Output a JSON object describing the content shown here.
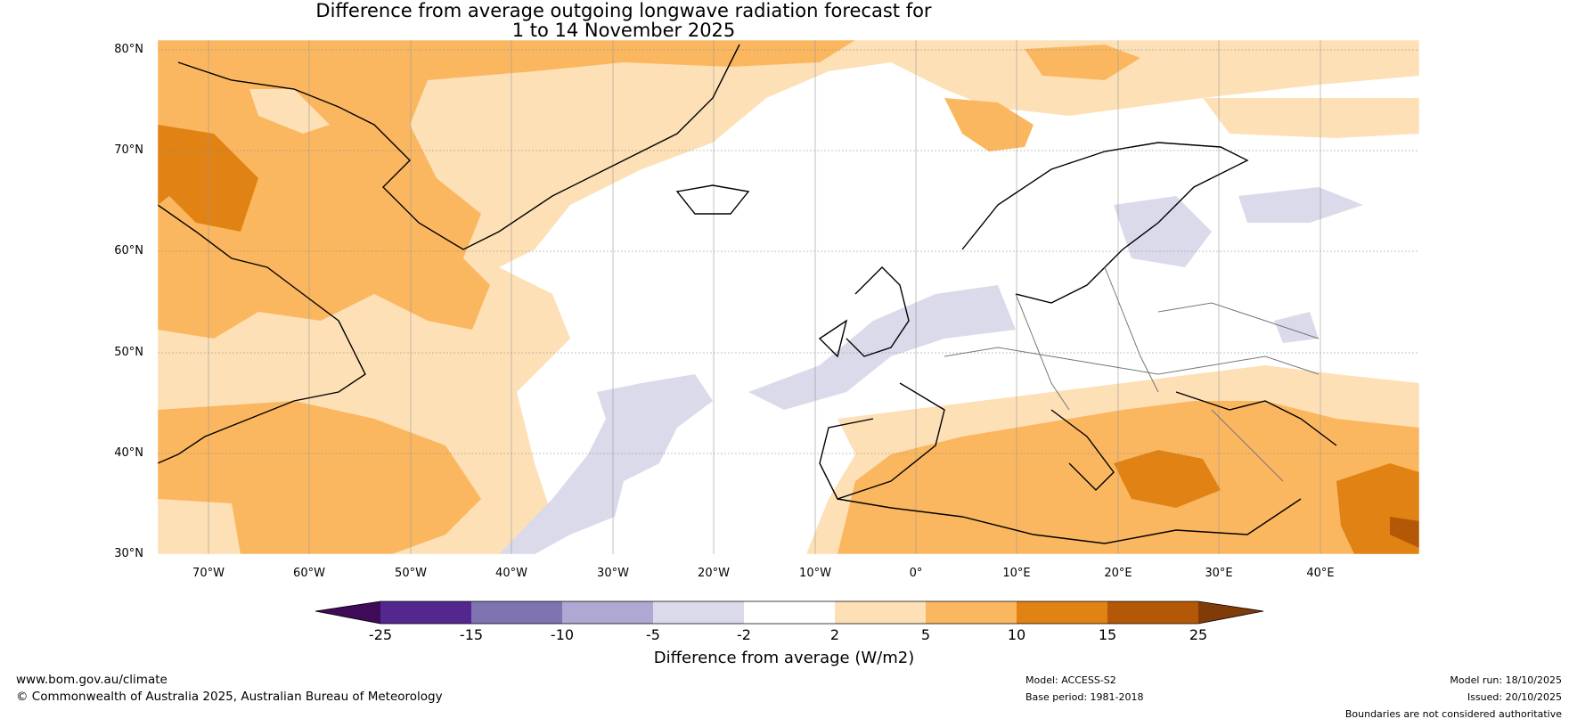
{
  "title": {
    "line1": "Difference from average outgoing longwave radiation forecast for",
    "line2": "1 to 14 November 2025"
  },
  "axes": {
    "lat_labels": [
      "80°N",
      "70°N",
      "60°N",
      "50°N",
      "40°N",
      "30°N"
    ],
    "lon_labels": [
      "70°W",
      "60°W",
      "50°W",
      "40°W",
      "30°W",
      "20°W",
      "10°W",
      "0°",
      "10°E",
      "20°E",
      "30°E",
      "40°E"
    ]
  },
  "colorbar": {
    "label": "Difference from average (W/m2)",
    "ticks": [
      "-25",
      "-15",
      "-10",
      "-5",
      "-2",
      "2",
      "5",
      "10",
      "15",
      "25"
    ],
    "colors": [
      "#3f0a57",
      "#54278f",
      "#7f73b2",
      "#afa8d2",
      "#dadaeb",
      "#ffffff",
      "#fde0b6",
      "#fbb760",
      "#e08214",
      "#b35806",
      "#7f3b08"
    ]
  },
  "footer": {
    "site": "www.bom.gov.au/climate",
    "copyright": "© Commonwealth of Australia 2025, Australian Bureau of Meteorology",
    "model": "Model: ACCESS-S2",
    "base_period": "Base period: 1981-2018",
    "model_run": "Model run: 18/10/2025",
    "issued": "Issued: 20/10/2025",
    "boundaries": "Boundaries are not considered authoritative"
  }
}
